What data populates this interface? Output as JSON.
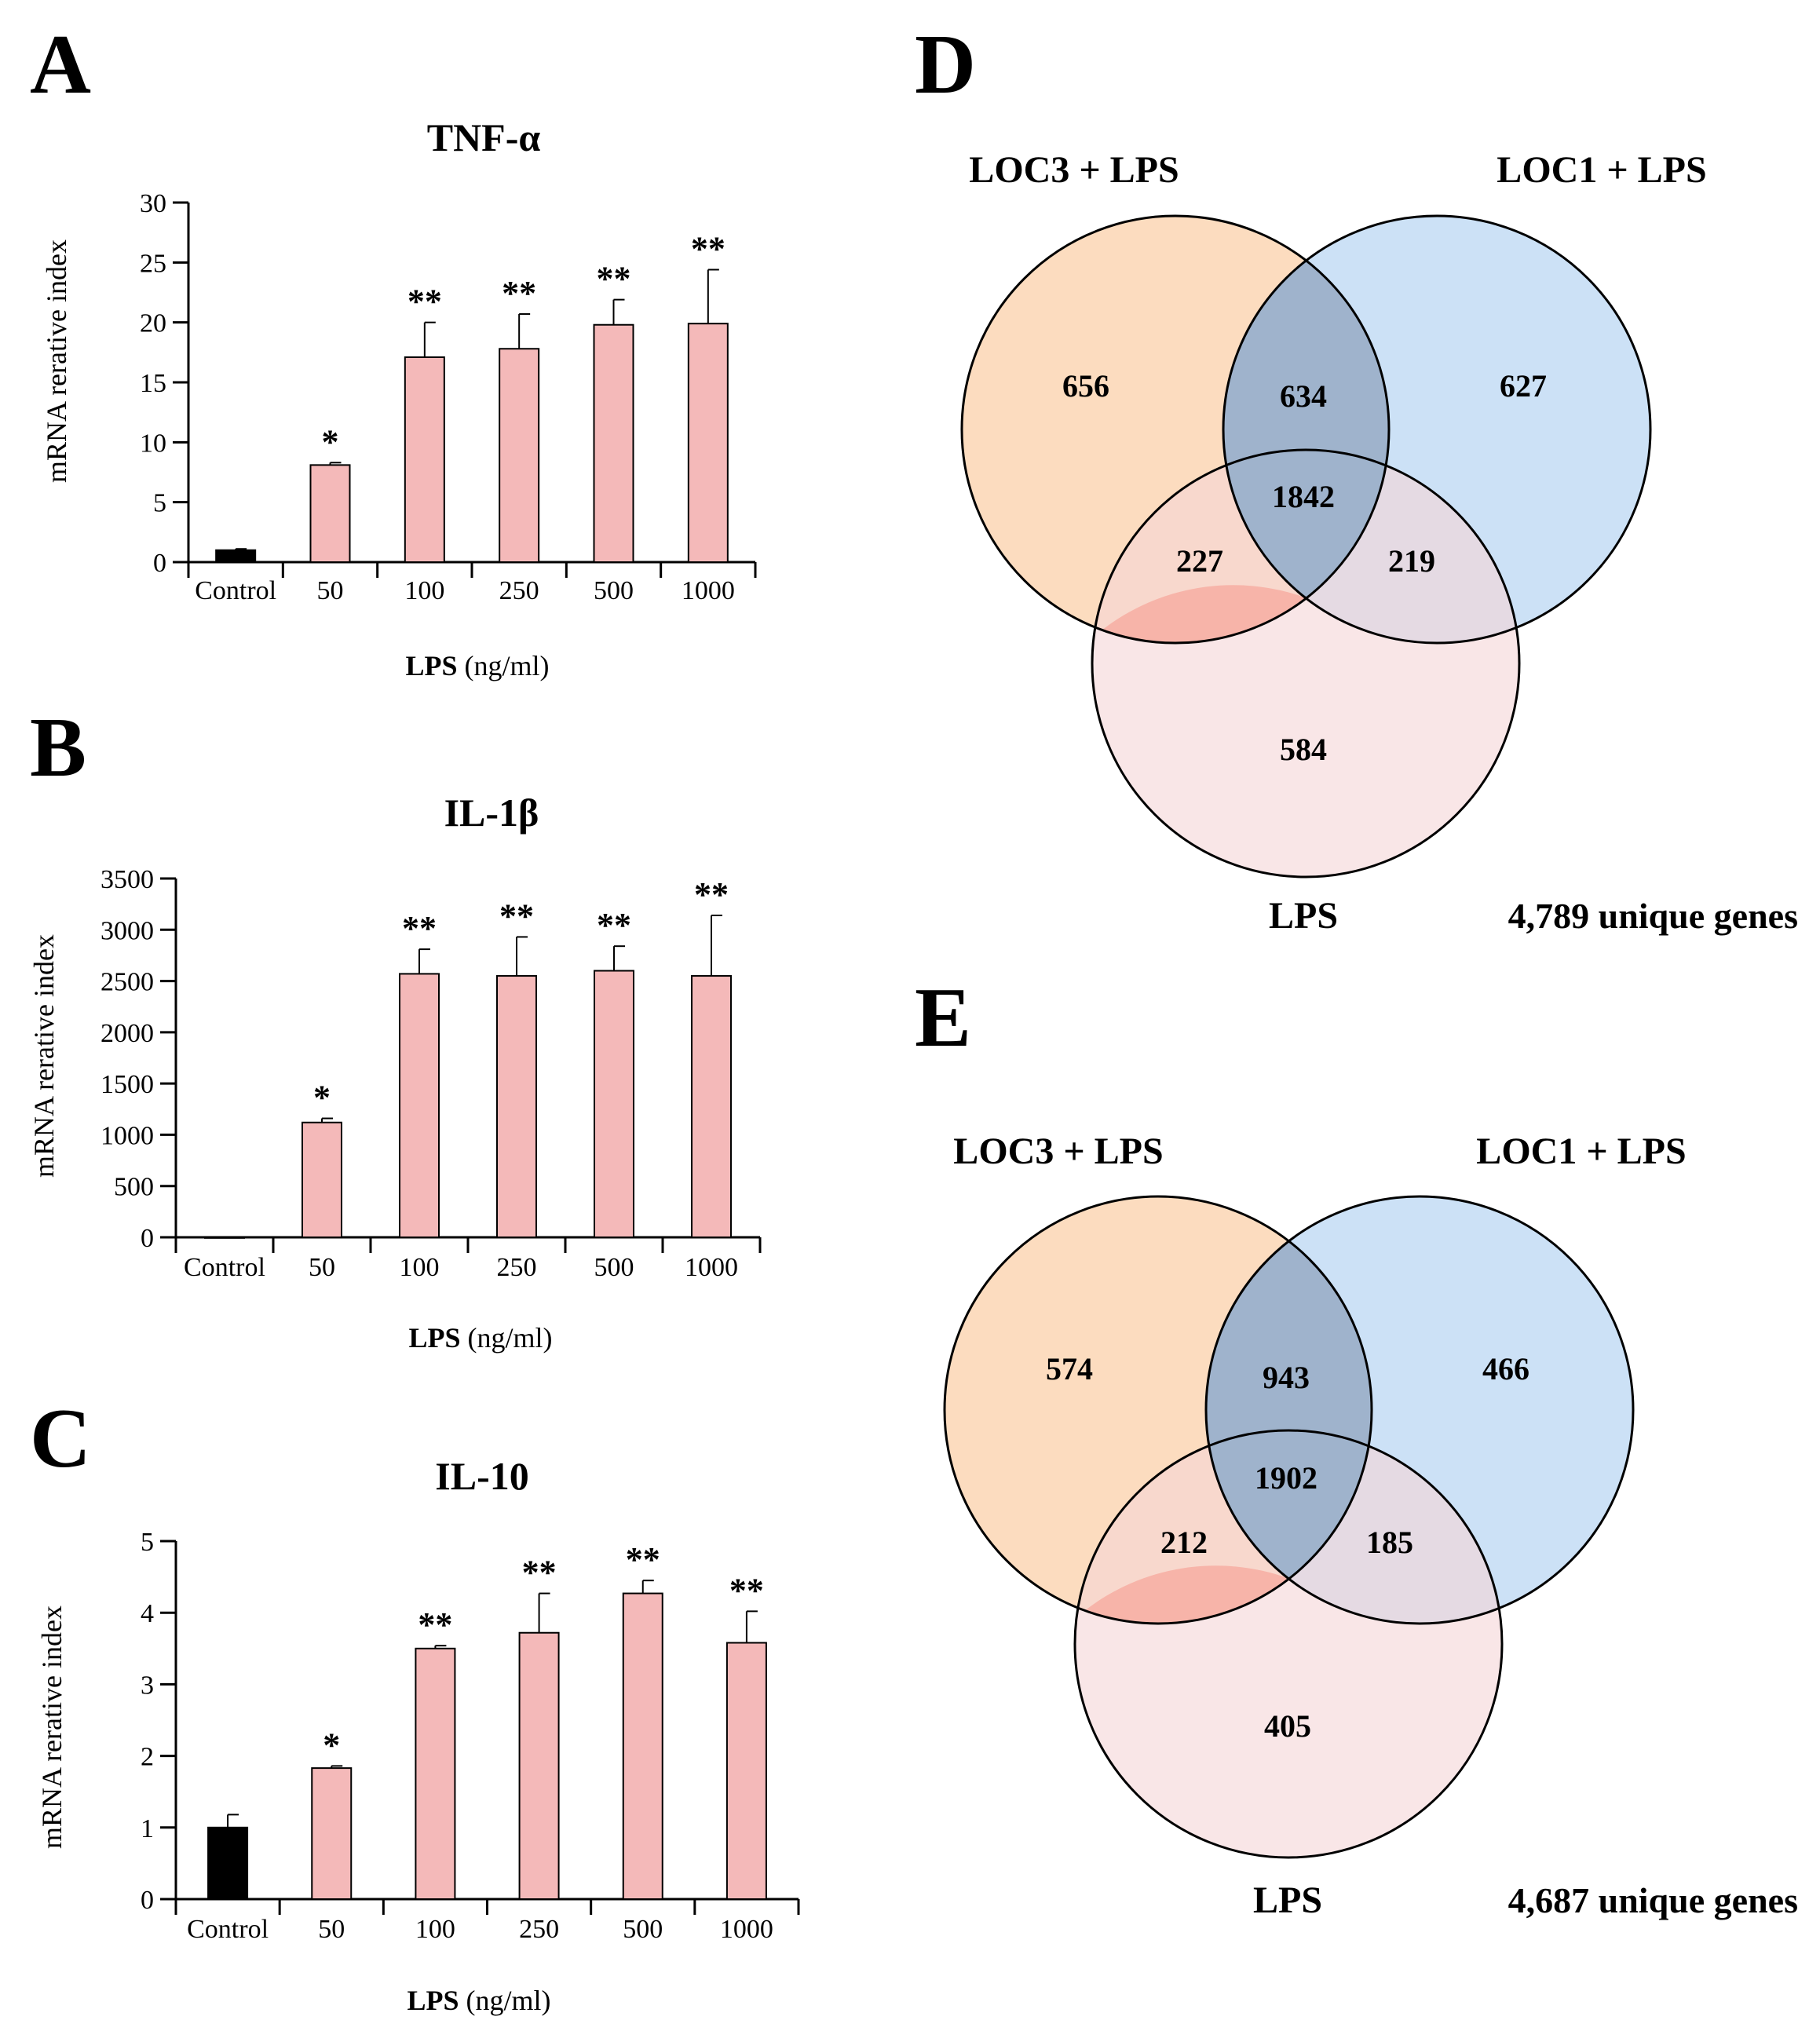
{
  "colors": {
    "bar": "#f4b9b9",
    "control_bar": "#000000",
    "set_loc3": "#fcdcbf",
    "set_loc1": "#a3c9ee",
    "set_lps": "#f5d6d7"
  },
  "chart_data": [
    {
      "type": "bar",
      "panel": "A",
      "title": "TNF-α",
      "ylabel": "mRNA rerative index",
      "xlabel_bold": "LPS",
      "xlabel_rest": "(ng/ml)",
      "categories": [
        "Control",
        "50",
        "100",
        "250",
        "500",
        "1000"
      ],
      "values": [
        1.0,
        8.1,
        17.1,
        17.8,
        19.8,
        19.9
      ],
      "errors": [
        0.1,
        0.2,
        2.9,
        2.9,
        2.1,
        4.5
      ],
      "significance": [
        "",
        "*",
        "**",
        "**",
        "**",
        "**"
      ],
      "ylim": [
        0,
        30
      ],
      "yticks": [
        "0",
        "5",
        "10",
        "15",
        "20",
        "25",
        "30"
      ]
    },
    {
      "type": "bar",
      "panel": "B",
      "title": "IL-1β",
      "ylabel": "mRNA rerative index",
      "xlabel_bold": "LPS",
      "xlabel_rest": "(ng/ml)",
      "categories": [
        "Control",
        "50",
        "100",
        "250",
        "500",
        "1000"
      ],
      "values": [
        1,
        1120,
        2570,
        2550,
        2600,
        2550
      ],
      "errors": [
        0,
        40,
        240,
        380,
        240,
        590
      ],
      "significance": [
        "",
        "*",
        "**",
        "**",
        "**",
        "**"
      ],
      "ylim": [
        0,
        3500
      ],
      "yticks": [
        "0",
        "500",
        "1000",
        "1500",
        "2000",
        "2500",
        "3000",
        "3500"
      ]
    },
    {
      "type": "bar",
      "panel": "C",
      "title": "IL-10",
      "ylabel": "mRNA rerative index",
      "xlabel_bold": "LPS",
      "xlabel_rest": "(ng/ml)",
      "categories": [
        "Control",
        "50",
        "100",
        "250",
        "500",
        "1000"
      ],
      "values": [
        1.0,
        1.83,
        3.5,
        3.72,
        4.27,
        3.58
      ],
      "errors": [
        0.18,
        0.03,
        0.04,
        0.55,
        0.18,
        0.44
      ],
      "significance": [
        "",
        "*",
        "**",
        "**",
        "**",
        "**"
      ],
      "ylim": [
        0,
        5
      ],
      "yticks": [
        "0",
        "1",
        "2",
        "3",
        "4",
        "5"
      ]
    },
    {
      "type": "venn",
      "panel": "D",
      "sets": [
        "LOC3 + LPS",
        "LOC1 + LPS",
        "LPS"
      ],
      "regions": {
        "loc3_only": "656",
        "loc1_only": "627",
        "lps_only": "584",
        "loc3_loc1": "634",
        "loc3_lps": "227",
        "loc1_lps": "219",
        "all": "1842"
      },
      "total": "4,789 unique genes"
    },
    {
      "type": "venn",
      "panel": "E",
      "sets": [
        "LOC3 + LPS",
        "LOC1 + LPS",
        "LPS"
      ],
      "regions": {
        "loc3_only": "574",
        "loc1_only": "466",
        "lps_only": "405",
        "loc3_loc1": "943",
        "loc3_lps": "212",
        "loc1_lps": "185",
        "all": "1902"
      },
      "total": "4,687 unique genes"
    }
  ]
}
